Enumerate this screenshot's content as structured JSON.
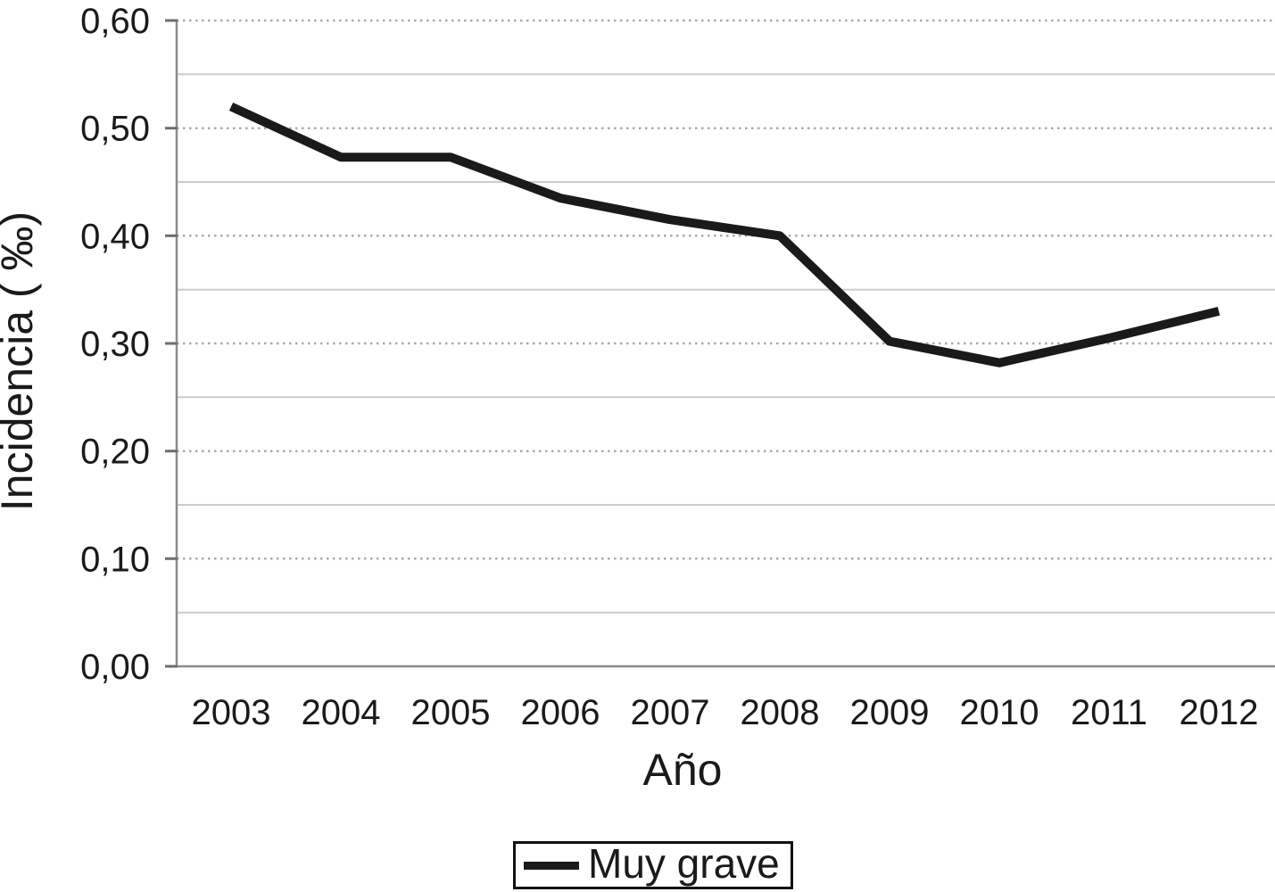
{
  "chart_data": {
    "type": "line",
    "title": "",
    "xlabel": "Año",
    "ylabel": "Incidencia ( ‰)",
    "categories": [
      "2003",
      "2004",
      "2005",
      "2006",
      "2007",
      "2008",
      "2009",
      "2010",
      "2011",
      "2012"
    ],
    "series": [
      {
        "name": "Muy grave",
        "values": [
          0.52,
          0.473,
          0.473,
          0.435,
          0.415,
          0.4,
          0.302,
          0.282,
          0.305,
          0.33
        ]
      }
    ],
    "ylim": [
      0.0,
      0.6
    ],
    "yticks": {
      "values": [
        0.0,
        0.1,
        0.2,
        0.3,
        0.4,
        0.5,
        0.6
      ],
      "labels": [
        "0,00",
        "0,10",
        "0,20",
        "0,30",
        "0,40",
        "0,50",
        "0,60"
      ]
    },
    "minor_gridlines": [
      0.05,
      0.15,
      0.25,
      0.35,
      0.45,
      0.55
    ],
    "grid": {
      "major_style": "dotted",
      "minor_style": "solid",
      "shown": true
    },
    "legend": {
      "position": "bottom-center",
      "boxed": true,
      "entries": [
        "Muy grave"
      ]
    },
    "colors": {
      "line": "#1a1a1a",
      "text": "#1a1a1a",
      "grid_major": "#aaaaaa",
      "grid_minor": "#cccccc",
      "axis": "#8c8c8c",
      "tick": "#6e6e6e",
      "background": "#ffffff"
    }
  }
}
